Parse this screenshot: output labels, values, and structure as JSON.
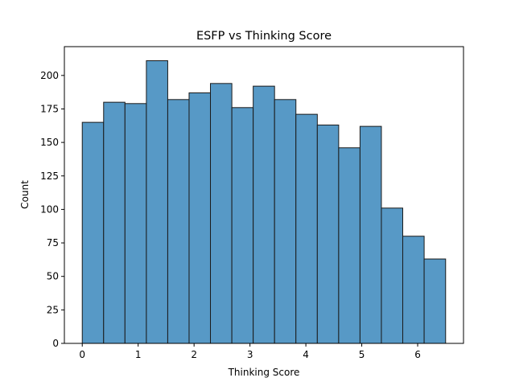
{
  "chart_data": {
    "type": "bar",
    "title": "ESFP vs Thinking Score",
    "xlabel": "Thinking Score",
    "ylabel": "Count",
    "xlim": [
      -0.32,
      6.82
    ],
    "ylim": [
      0,
      221.5
    ],
    "xticks": [
      0,
      1,
      2,
      3,
      4,
      5,
      6
    ],
    "yticks": [
      0,
      25,
      50,
      75,
      100,
      125,
      150,
      175,
      200
    ],
    "bin_edges": [
      0.0,
      0.382,
      0.764,
      1.147,
      1.529,
      1.911,
      2.293,
      2.676,
      3.058,
      3.44,
      3.822,
      4.205,
      4.587,
      4.969,
      5.351,
      5.733,
      6.116,
      6.5
    ],
    "values": [
      165,
      180,
      179,
      211,
      182,
      187,
      194,
      176,
      192,
      182,
      171,
      163,
      146,
      162,
      101,
      80,
      63
    ],
    "bar_color": "#5799c6",
    "grid": false,
    "legend": "none"
  }
}
